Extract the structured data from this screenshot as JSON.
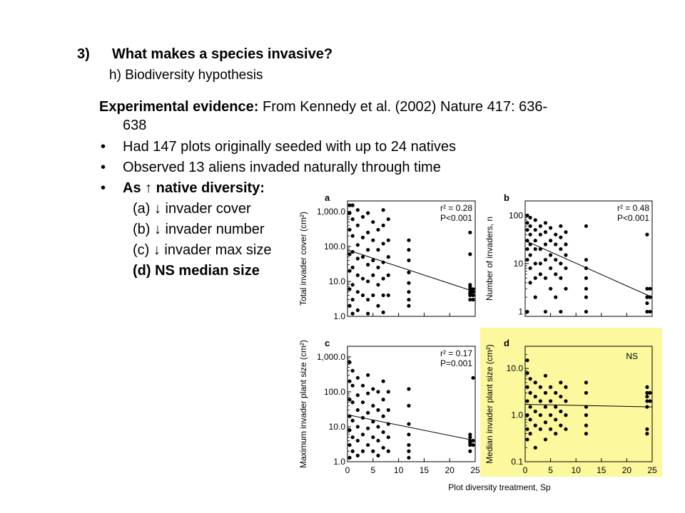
{
  "heading": {
    "number": "3)",
    "title": "What makes a species invasive?",
    "subtitle": "h) Biodiversity hypothesis"
  },
  "evidence": {
    "label": "Experimental evidence:",
    "source_line1": "From Kennedy et al. (2002) Nature 417: 636-",
    "source_line2": "638"
  },
  "bullets": [
    {
      "text": "Had 147 plots originally seeded with up to 24 natives"
    },
    {
      "text": "Observed 13 aliens invaded naturally through time"
    },
    {
      "text": "As ↑ native diversity:"
    }
  ],
  "sub_items": [
    {
      "text": "(a) ↓ invader cover"
    },
    {
      "text": "(b) ↓ invader number"
    },
    {
      "text": "(c) ↓ invader max size"
    },
    {
      "text": "(d) NS median size"
    }
  ],
  "colors": {
    "highlight": "#fbf89e",
    "points": "#000000"
  },
  "chart_data": [
    {
      "type": "scatter",
      "panel": "a",
      "ylabel": "Total invader cover (cm²)",
      "yscale": "log",
      "ylim": [
        1,
        2000
      ],
      "xlim": [
        0,
        25
      ],
      "ytick_labels": [
        "1.0",
        "10.0",
        "100.0",
        "1,000.0"
      ],
      "ytick_values": [
        1,
        10,
        100,
        1000
      ],
      "stat_r2": "0.28",
      "stat_p": "<0.001",
      "trend": [
        [
          0,
          80
        ],
        [
          25,
          5
        ]
      ],
      "points": [
        [
          0,
          1500
        ],
        [
          0,
          900
        ],
        [
          0,
          300
        ],
        [
          0,
          60
        ],
        [
          0,
          20
        ],
        [
          0,
          6
        ],
        [
          0,
          2
        ],
        [
          1,
          1500
        ],
        [
          1,
          600
        ],
        [
          1,
          200
        ],
        [
          1,
          70
        ],
        [
          1,
          25
        ],
        [
          1,
          8
        ],
        [
          1,
          3
        ],
        [
          1,
          1.2
        ],
        [
          2,
          1100
        ],
        [
          2,
          400
        ],
        [
          2,
          110
        ],
        [
          2,
          45
        ],
        [
          2,
          15
        ],
        [
          2,
          5
        ],
        [
          2,
          1.5
        ],
        [
          3,
          700
        ],
        [
          3,
          180
        ],
        [
          3,
          50
        ],
        [
          3,
          12
        ],
        [
          3,
          4
        ],
        [
          4,
          900
        ],
        [
          4,
          250
        ],
        [
          4,
          80
        ],
        [
          4,
          30
        ],
        [
          4,
          10
        ],
        [
          4,
          3
        ],
        [
          4,
          1.2
        ],
        [
          5,
          500
        ],
        [
          5,
          150
        ],
        [
          5,
          40
        ],
        [
          5,
          15
        ],
        [
          5,
          4
        ],
        [
          6,
          300
        ],
        [
          6,
          80
        ],
        [
          6,
          25
        ],
        [
          6,
          8
        ],
        [
          6,
          2
        ],
        [
          7,
          1100
        ],
        [
          7,
          400
        ],
        [
          7,
          120
        ],
        [
          7,
          35
        ],
        [
          7,
          12
        ],
        [
          7,
          4
        ],
        [
          7,
          1.3
        ],
        [
          8,
          600
        ],
        [
          8,
          150
        ],
        [
          8,
          50
        ],
        [
          8,
          15
        ],
        [
          8,
          4
        ],
        [
          12,
          150
        ],
        [
          12,
          80
        ],
        [
          12,
          40
        ],
        [
          12,
          18
        ],
        [
          12,
          9
        ],
        [
          12,
          5
        ],
        [
          12,
          3
        ],
        [
          12,
          2
        ],
        [
          24,
          250
        ],
        [
          24,
          60
        ],
        [
          24,
          8
        ],
        [
          24,
          7
        ],
        [
          24,
          6
        ],
        [
          24,
          5
        ],
        [
          24,
          4.5
        ],
        [
          24,
          4
        ],
        [
          24,
          3
        ],
        [
          25,
          6
        ],
        [
          25,
          5
        ],
        [
          25,
          4
        ],
        [
          25,
          3
        ]
      ]
    },
    {
      "type": "scatter",
      "panel": "b",
      "ylabel": "Number of invaders, n",
      "yscale": "log",
      "ylim": [
        0.8,
        200
      ],
      "xlim": [
        0,
        25
      ],
      "ytick_labels": [
        "1",
        "10",
        "100"
      ],
      "ytick_values": [
        1,
        10,
        100
      ],
      "stat_r2": "0.48",
      "stat_p": "<0.001",
      "trend": [
        [
          0,
          30
        ],
        [
          25,
          2
        ]
      ],
      "points": [
        [
          0,
          100
        ],
        [
          0,
          70
        ],
        [
          0,
          50
        ],
        [
          0,
          30
        ],
        [
          0,
          20
        ],
        [
          0,
          12
        ],
        [
          0,
          1
        ],
        [
          1,
          90
        ],
        [
          1,
          60
        ],
        [
          1,
          40
        ],
        [
          1,
          25
        ],
        [
          1,
          15
        ],
        [
          1,
          8
        ],
        [
          1,
          4
        ],
        [
          2,
          80
        ],
        [
          2,
          50
        ],
        [
          2,
          30
        ],
        [
          2,
          20
        ],
        [
          2,
          10
        ],
        [
          2,
          5
        ],
        [
          2,
          2
        ],
        [
          3,
          60
        ],
        [
          3,
          40
        ],
        [
          3,
          20
        ],
        [
          3,
          10
        ],
        [
          3,
          6
        ],
        [
          4,
          70
        ],
        [
          4,
          45
        ],
        [
          4,
          25
        ],
        [
          4,
          12
        ],
        [
          4,
          5
        ],
        [
          4,
          1
        ],
        [
          5,
          55
        ],
        [
          5,
          30
        ],
        [
          5,
          15
        ],
        [
          5,
          8
        ],
        [
          5,
          3
        ],
        [
          6,
          40
        ],
        [
          6,
          25
        ],
        [
          6,
          12
        ],
        [
          6,
          6
        ],
        [
          6,
          2
        ],
        [
          7,
          60
        ],
        [
          7,
          35
        ],
        [
          7,
          20
        ],
        [
          7,
          10
        ],
        [
          7,
          5
        ],
        [
          7,
          1
        ],
        [
          8,
          45
        ],
        [
          8,
          25
        ],
        [
          8,
          15
        ],
        [
          8,
          8
        ],
        [
          8,
          3
        ],
        [
          12,
          60
        ],
        [
          12,
          12
        ],
        [
          12,
          8
        ],
        [
          12,
          5
        ],
        [
          12,
          3
        ],
        [
          12,
          2
        ],
        [
          12,
          1
        ],
        [
          24,
          40
        ],
        [
          24,
          3
        ],
        [
          24,
          2
        ],
        [
          24,
          1.5
        ],
        [
          24,
          1
        ],
        [
          25,
          3
        ],
        [
          25,
          2
        ],
        [
          25,
          1
        ]
      ]
    },
    {
      "type": "scatter",
      "panel": "c",
      "ylabel": "Maximum invader plant size (cm²)",
      "yscale": "log",
      "ylim": [
        1,
        2000
      ],
      "xlim": [
        0,
        25
      ],
      "ytick_labels": [
        "1.0",
        "10.0",
        "100.0",
        "1,000.0"
      ],
      "ytick_values": [
        1,
        10,
        100,
        1000
      ],
      "stat_r2": "0.17",
      "stat_p": "=0.001",
      "trend": [
        [
          0,
          22
        ],
        [
          25,
          4
        ]
      ],
      "points": [
        [
          0,
          700
        ],
        [
          0,
          200
        ],
        [
          0,
          60
        ],
        [
          0,
          20
        ],
        [
          0,
          8
        ],
        [
          0,
          3
        ],
        [
          0,
          1.3
        ],
        [
          1,
          400
        ],
        [
          1,
          150
        ],
        [
          1,
          50
        ],
        [
          1,
          15
        ],
        [
          1,
          5
        ],
        [
          1,
          2
        ],
        [
          2,
          250
        ],
        [
          2,
          80
        ],
        [
          2,
          30
        ],
        [
          2,
          10
        ],
        [
          2,
          4
        ],
        [
          2,
          1.5
        ],
        [
          3,
          150
        ],
        [
          3,
          50
        ],
        [
          3,
          18
        ],
        [
          3,
          6
        ],
        [
          3,
          2
        ],
        [
          4,
          300
        ],
        [
          4,
          90
        ],
        [
          4,
          25
        ],
        [
          4,
          9
        ],
        [
          4,
          3
        ],
        [
          5,
          120
        ],
        [
          5,
          40
        ],
        [
          5,
          14
        ],
        [
          5,
          5
        ],
        [
          5,
          2
        ],
        [
          6,
          100
        ],
        [
          6,
          30
        ],
        [
          6,
          10
        ],
        [
          6,
          4
        ],
        [
          6,
          1.5
        ],
        [
          7,
          200
        ],
        [
          7,
          60
        ],
        [
          7,
          20
        ],
        [
          7,
          7
        ],
        [
          7,
          2.5
        ],
        [
          8,
          100
        ],
        [
          8,
          30
        ],
        [
          8,
          12
        ],
        [
          8,
          5
        ],
        [
          8,
          2
        ],
        [
          12,
          120
        ],
        [
          12,
          40
        ],
        [
          12,
          12
        ],
        [
          12,
          6
        ],
        [
          12,
          3
        ],
        [
          12,
          2
        ],
        [
          12,
          1.3
        ],
        [
          24,
          6
        ],
        [
          24,
          5
        ],
        [
          24,
          4
        ],
        [
          24,
          3.5
        ],
        [
          24,
          3
        ],
        [
          24,
          2
        ],
        [
          25,
          250
        ],
        [
          25,
          4
        ],
        [
          25,
          3
        ]
      ]
    },
    {
      "type": "scatter",
      "panel": "d",
      "ylabel": "Median invader plant size (cm²)",
      "xlabel": "Plot diversity treatment, Sp",
      "yscale": "log",
      "ylim": [
        0.1,
        30
      ],
      "xlim": [
        0,
        25
      ],
      "ytick_labels": [
        "0.1",
        "1.0",
        "10.0"
      ],
      "ytick_values": [
        0.1,
        1,
        10
      ],
      "xtick_labels": [
        "0",
        "5",
        "10",
        "15",
        "20",
        "25"
      ],
      "xtick_values": [
        0,
        5,
        10,
        15,
        20,
        25
      ],
      "annotation": "NS",
      "trend": [
        [
          0,
          1.7
        ],
        [
          25,
          1.5
        ]
      ],
      "points": [
        [
          0,
          15
        ],
        [
          0,
          8
        ],
        [
          0,
          4
        ],
        [
          0,
          2
        ],
        [
          0,
          1
        ],
        [
          0,
          0.5
        ],
        [
          0,
          0.3
        ],
        [
          1,
          6
        ],
        [
          1,
          3
        ],
        [
          1,
          1.5
        ],
        [
          1,
          0.8
        ],
        [
          1,
          0.4
        ],
        [
          2,
          5
        ],
        [
          2,
          2.5
        ],
        [
          2,
          1.2
        ],
        [
          2,
          0.6
        ],
        [
          2,
          0.2
        ],
        [
          3,
          4
        ],
        [
          3,
          2
        ],
        [
          3,
          1
        ],
        [
          3,
          0.5
        ],
        [
          4,
          7
        ],
        [
          4,
          3
        ],
        [
          4,
          1.5
        ],
        [
          4,
          0.7
        ],
        [
          4,
          0.3
        ],
        [
          5,
          4
        ],
        [
          5,
          2
        ],
        [
          5,
          1
        ],
        [
          5,
          0.5
        ],
        [
          6,
          3
        ],
        [
          6,
          1.5
        ],
        [
          6,
          0.8
        ],
        [
          6,
          0.4
        ],
        [
          7,
          5
        ],
        [
          7,
          2.5
        ],
        [
          7,
          1.2
        ],
        [
          7,
          0.6
        ],
        [
          8,
          4
        ],
        [
          8,
          2
        ],
        [
          8,
          1
        ],
        [
          8,
          0.5
        ],
        [
          12,
          5
        ],
        [
          12,
          3
        ],
        [
          12,
          1.5
        ],
        [
          12,
          1
        ],
        [
          12,
          0.6
        ],
        [
          12,
          0.4
        ],
        [
          24,
          4
        ],
        [
          24,
          3
        ],
        [
          24,
          2.5
        ],
        [
          24,
          2
        ],
        [
          24,
          1.5
        ],
        [
          24,
          0.5
        ],
        [
          24,
          0.4
        ],
        [
          25,
          3
        ],
        [
          25,
          2
        ]
      ]
    }
  ]
}
